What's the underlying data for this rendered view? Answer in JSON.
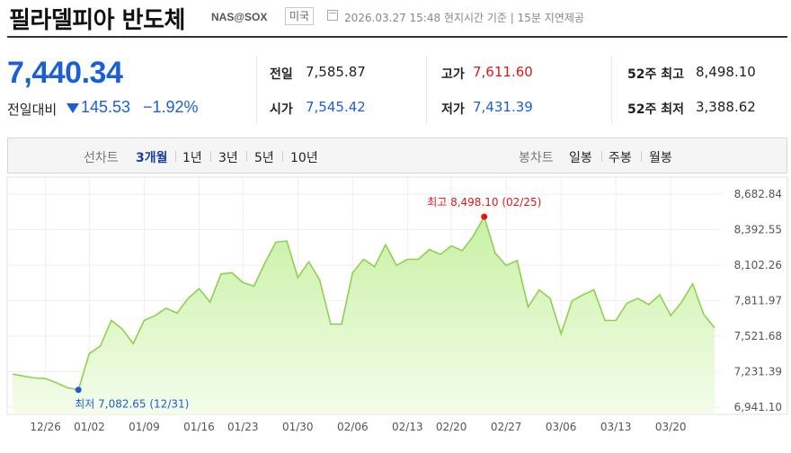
{
  "header": {
    "title": "필라델피아 반도체",
    "code": "NAS@SOX",
    "market": "미국",
    "time": "2026.03.27 15:48 현지시간 기준 | 15분 지연제공"
  },
  "quote": {
    "price": "7,440.34",
    "change_label": "전일대비",
    "change": "145.53",
    "change_pct": "−1.92%",
    "direction": "down"
  },
  "stats": [
    {
      "label": "전일",
      "value": "7,585.87",
      "color": "black"
    },
    {
      "label": "고가",
      "value": "7,611.60",
      "color": "red"
    },
    {
      "label": "52주 최고",
      "value": "8,498.10",
      "color": "black"
    },
    {
      "label": "시가",
      "value": "7,545.42",
      "color": "blue"
    },
    {
      "label": "저가",
      "value": "7,431.39",
      "color": "blue"
    },
    {
      "label": "52주 최저",
      "value": "3,388.62",
      "color": "black"
    }
  ],
  "toolbar": {
    "line_label": "선차트",
    "periods": [
      "3개월",
      "1년",
      "3년",
      "5년",
      "10년"
    ],
    "active_period": "3개월",
    "candle_label": "봉차트",
    "candles": [
      "일봉",
      "주봉",
      "월봉"
    ]
  },
  "colors": {
    "up": "#e0181a",
    "down": "#1a5fd6",
    "line": "#8fd14f",
    "fill_top": "#c9f0a4",
    "fill_bottom": "#f4fdeb"
  },
  "chart_data": {
    "type": "area",
    "x": [
      "12/22",
      "12/23",
      "12/24",
      "12/26",
      "12/29",
      "12/30",
      "12/31",
      "01/02",
      "01/05",
      "01/06",
      "01/07",
      "01/08",
      "01/09",
      "01/12",
      "01/13",
      "01/14",
      "01/15",
      "01/16",
      "01/20",
      "01/21",
      "01/22",
      "01/23",
      "01/26",
      "01/27",
      "01/28",
      "01/29",
      "01/30",
      "02/02",
      "02/03",
      "02/04",
      "02/05",
      "02/06",
      "02/09",
      "02/10",
      "02/11",
      "02/12",
      "02/13",
      "02/17",
      "02/18",
      "02/19",
      "02/20",
      "02/23",
      "02/24",
      "02/25",
      "02/26",
      "02/27",
      "03/02",
      "03/03",
      "03/04",
      "03/05",
      "03/06",
      "03/09",
      "03/10",
      "03/11",
      "03/12",
      "03/13",
      "03/16",
      "03/17",
      "03/18",
      "03/19",
      "03/20",
      "03/23",
      "03/24",
      "03/25",
      "03/26"
    ],
    "values": [
      7212,
      7195,
      7180,
      7175,
      7140,
      7100,
      7082.65,
      7380,
      7440,
      7650,
      7580,
      7460,
      7650,
      7690,
      7750,
      7710,
      7830,
      7910,
      7800,
      8030,
      8040,
      7960,
      7930,
      8120,
      8290,
      8300,
      8000,
      8130,
      7980,
      7620,
      7620,
      8040,
      8150,
      8090,
      8270,
      8100,
      8150,
      8150,
      8230,
      8190,
      8260,
      8220,
      8340,
      8498.1,
      8200,
      8100,
      8140,
      7760,
      7900,
      7830,
      7540,
      7810,
      7860,
      7900,
      7650,
      7650,
      7790,
      7830,
      7780,
      7860,
      7690,
      7800,
      7950,
      7700,
      7590
    ],
    "x_tick_labels": [
      "12/26",
      "01/02",
      "01/09",
      "01/16",
      "01/23",
      "01/30",
      "02/06",
      "02/13",
      "02/20",
      "02/27",
      "03/06",
      "03/13",
      "03/20"
    ],
    "y_ticks": [
      "8,682.84",
      "8,392.55",
      "8,102.26",
      "7,811.97",
      "7,521.68",
      "7,231.39",
      "6,941.10"
    ],
    "ylim": [
      6941.1,
      8682.84
    ],
    "annotations": {
      "high": {
        "label": "최고 8,498.10 (02/25)",
        "x": "02/25",
        "value": 8498.1
      },
      "low": {
        "label": "최저 7,082.65 (12/31)",
        "x": "12/31",
        "value": 7082.65
      }
    }
  }
}
